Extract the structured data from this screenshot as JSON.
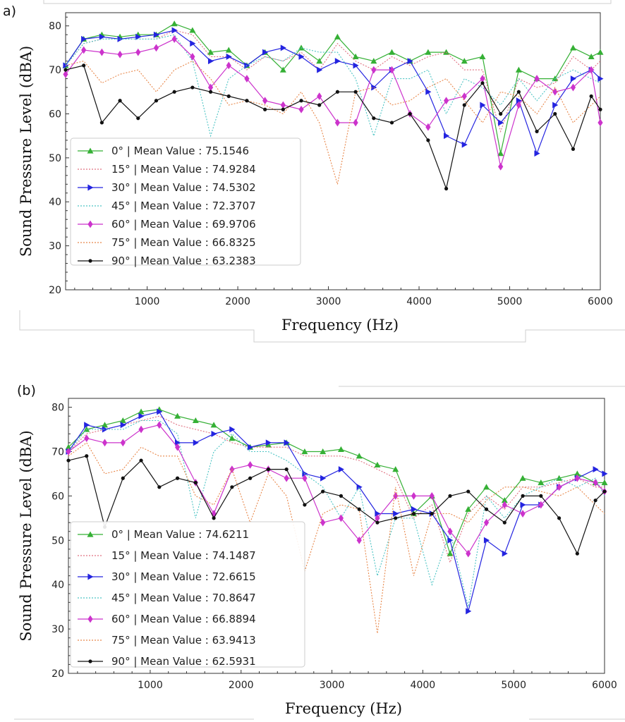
{
  "chart_data": [
    {
      "panel_label": "a)",
      "type": "line",
      "xlabel": "Frequency (Hz)",
      "ylabel": "Sound Pressure Level (dBA)",
      "xlim": [
        100,
        6000
      ],
      "ylim": [
        20,
        83
      ],
      "xticks": [
        1000,
        2000,
        3000,
        4000,
        5000,
        6000
      ],
      "yticks": [
        20,
        30,
        40,
        50,
        60,
        70,
        80
      ],
      "legend_position": "lower-left",
      "x": [
        100,
        300,
        500,
        700,
        900,
        1100,
        1300,
        1500,
        1700,
        1900,
        2100,
        2300,
        2500,
        2700,
        2900,
        3100,
        3300,
        3500,
        3700,
        3900,
        4100,
        4300,
        4500,
        4700,
        4900,
        5100,
        5300,
        5500,
        5700,
        5900,
        6000
      ],
      "series": [
        {
          "name": "0° | Mean Value : 75.1546",
          "color": "#35b035",
          "style": "solid",
          "marker": "triangle-up",
          "values": [
            71,
            77,
            78,
            77.5,
            78,
            78,
            80.5,
            79,
            74,
            74.5,
            71,
            74,
            70,
            75,
            72,
            77.5,
            73,
            72,
            74,
            72,
            74,
            74,
            72,
            73,
            51,
            70,
            68,
            68,
            75,
            73,
            74
          ]
        },
        {
          "name": "15° | Mean Value : 74.9284",
          "color": "#e07080",
          "style": "dotted",
          "marker": "none",
          "values": [
            71,
            76,
            77,
            77,
            77,
            77,
            79,
            78,
            73,
            73,
            70,
            73,
            72,
            74,
            70,
            76,
            72,
            70,
            73,
            71,
            73,
            74,
            70,
            70,
            56,
            68,
            66,
            67,
            73,
            70,
            72
          ]
        },
        {
          "name": "30° | Mean Value : 74.5302",
          "color": "#2424e0",
          "style": "solid",
          "marker": "triangle-right",
          "values": [
            71,
            77,
            77.5,
            77,
            77.5,
            78,
            79,
            76,
            72,
            73,
            71,
            74,
            75,
            73,
            70,
            72,
            71,
            66,
            70,
            72,
            65,
            55,
            53,
            62,
            58,
            63,
            51,
            62,
            68,
            70,
            68
          ]
        },
        {
          "name": "45° | Mean Value : 72.3707",
          "color": "#4cc4c4",
          "style": "dotted",
          "marker": "none",
          "values": [
            71,
            76,
            77,
            77,
            77,
            77,
            78,
            72,
            55,
            68,
            71,
            73,
            72,
            75,
            74,
            74,
            68,
            55,
            68,
            68,
            70,
            60,
            68,
            66,
            62,
            68,
            63,
            68,
            70,
            68,
            67
          ]
        },
        {
          "name": "60° | Mean Value : 69.9706",
          "color": "#cc33cc",
          "style": "solid",
          "marker": "diamond",
          "values": [
            69,
            74.5,
            74,
            73.5,
            74,
            75,
            77,
            73,
            66,
            71,
            68,
            63,
            62,
            61,
            64,
            58,
            58,
            70,
            70,
            60,
            57,
            63,
            64,
            68,
            48,
            62,
            68,
            65,
            66,
            70,
            58
          ]
        },
        {
          "name": "75° | Mean Value : 66.8325",
          "color": "#e8874a",
          "style": "dotted",
          "marker": "none",
          "values": [
            71,
            72,
            67,
            69,
            70,
            65,
            70,
            72,
            68,
            62,
            63,
            62,
            60,
            65,
            58,
            44,
            65,
            66,
            62,
            63,
            66,
            68,
            63,
            58,
            65,
            64,
            60,
            66,
            58,
            62,
            64
          ]
        },
        {
          "name": "90° | Mean Value : 63.2383",
          "color": "#111111",
          "style": "solid",
          "marker": "circle",
          "values": [
            70,
            71,
            58,
            63,
            59,
            63,
            65,
            66,
            65,
            64,
            63,
            61,
            61,
            63,
            62,
            65,
            65,
            59,
            58,
            60,
            54,
            43,
            62,
            67,
            60,
            65,
            56,
            60,
            52,
            64,
            61
          ]
        }
      ]
    },
    {
      "panel_label": "(b)",
      "type": "line",
      "xlabel": "Frequency (Hz)",
      "ylabel": "Sound Pressure Level (dBA)",
      "xlim": [
        100,
        6000
      ],
      "ylim": [
        20,
        82
      ],
      "xticks": [
        1000,
        2000,
        3000,
        4000,
        5000,
        6000
      ],
      "yticks": [
        20,
        30,
        40,
        50,
        60,
        70,
        80
      ],
      "legend_position": "lower-left",
      "x": [
        100,
        300,
        500,
        700,
        900,
        1100,
        1300,
        1500,
        1700,
        1900,
        2100,
        2300,
        2500,
        2700,
        2900,
        3100,
        3300,
        3500,
        3700,
        3900,
        4100,
        4300,
        4500,
        4700,
        4900,
        5100,
        5300,
        5500,
        5700,
        5900,
        6000
      ],
      "series": [
        {
          "name": "0° | Mean Value : 74.6211",
          "color": "#35b035",
          "style": "solid",
          "marker": "triangle-up",
          "values": [
            71,
            75,
            76,
            77,
            79,
            79.5,
            78,
            77,
            76,
            73,
            71,
            71.5,
            72,
            70,
            70,
            70.5,
            69,
            67,
            66,
            56,
            60,
            47,
            57,
            62,
            59,
            64,
            63,
            64,
            65,
            63,
            63
          ]
        },
        {
          "name": "15° | Mean Value : 74.1487",
          "color": "#e07080",
          "style": "dotted",
          "marker": "none",
          "values": [
            70,
            74,
            75,
            76,
            77,
            78,
            76,
            75,
            74,
            72,
            71,
            71,
            71,
            69,
            69,
            69,
            68,
            66,
            64,
            55,
            58,
            45,
            56,
            60,
            57,
            62,
            62,
            63,
            64,
            62,
            62
          ]
        },
        {
          "name": "30° | Mean Value : 72.6615",
          "color": "#2424e0",
          "style": "solid",
          "marker": "triangle-right",
          "values": [
            70,
            76,
            75,
            76,
            78,
            79,
            72,
            72,
            74,
            75,
            71,
            72,
            72,
            65,
            64,
            66,
            62,
            56,
            56,
            57,
            56,
            50,
            34,
            50,
            47,
            58,
            58,
            62,
            64,
            66,
            65
          ]
        },
        {
          "name": "45° | Mean Value : 70.8647",
          "color": "#4cc4c4",
          "style": "dotted",
          "marker": "none",
          "values": [
            70,
            75,
            75,
            75,
            77,
            77,
            74,
            55,
            70,
            74,
            70,
            70,
            68,
            65,
            62,
            55,
            62,
            42,
            55,
            55,
            40,
            52,
            35,
            60,
            55,
            60,
            62,
            64,
            62,
            64,
            60
          ]
        },
        {
          "name": "60° | Mean Value : 66.8894",
          "color": "#cc33cc",
          "style": "solid",
          "marker": "diamond",
          "values": [
            70,
            73,
            72,
            72,
            75,
            76,
            71,
            63,
            56,
            66,
            67,
            66,
            64,
            64,
            54,
            55,
            50,
            55,
            60,
            60,
            60,
            52,
            47,
            54,
            58,
            56,
            58,
            62,
            64,
            63,
            61
          ]
        },
        {
          "name": "75° | Mean Value : 63.9413",
          "color": "#e8874a",
          "style": "dotted",
          "marker": "none",
          "values": [
            69,
            72,
            65,
            66,
            71,
            69,
            69,
            60,
            58,
            66,
            54,
            65,
            60,
            43,
            56,
            58,
            57,
            29,
            62,
            42,
            56,
            56,
            54,
            59,
            62,
            62,
            61,
            60,
            62,
            58,
            56
          ]
        },
        {
          "name": "90° | Mean Value : 62.5931",
          "color": "#111111",
          "style": "solid",
          "marker": "circle",
          "values": [
            68,
            69,
            53,
            64,
            68,
            62,
            64,
            63,
            55,
            62,
            64,
            66,
            66,
            58,
            61,
            60,
            57,
            54,
            55,
            56,
            56,
            60,
            61,
            57,
            54,
            60,
            60,
            55,
            47,
            59,
            61
          ]
        }
      ]
    }
  ]
}
